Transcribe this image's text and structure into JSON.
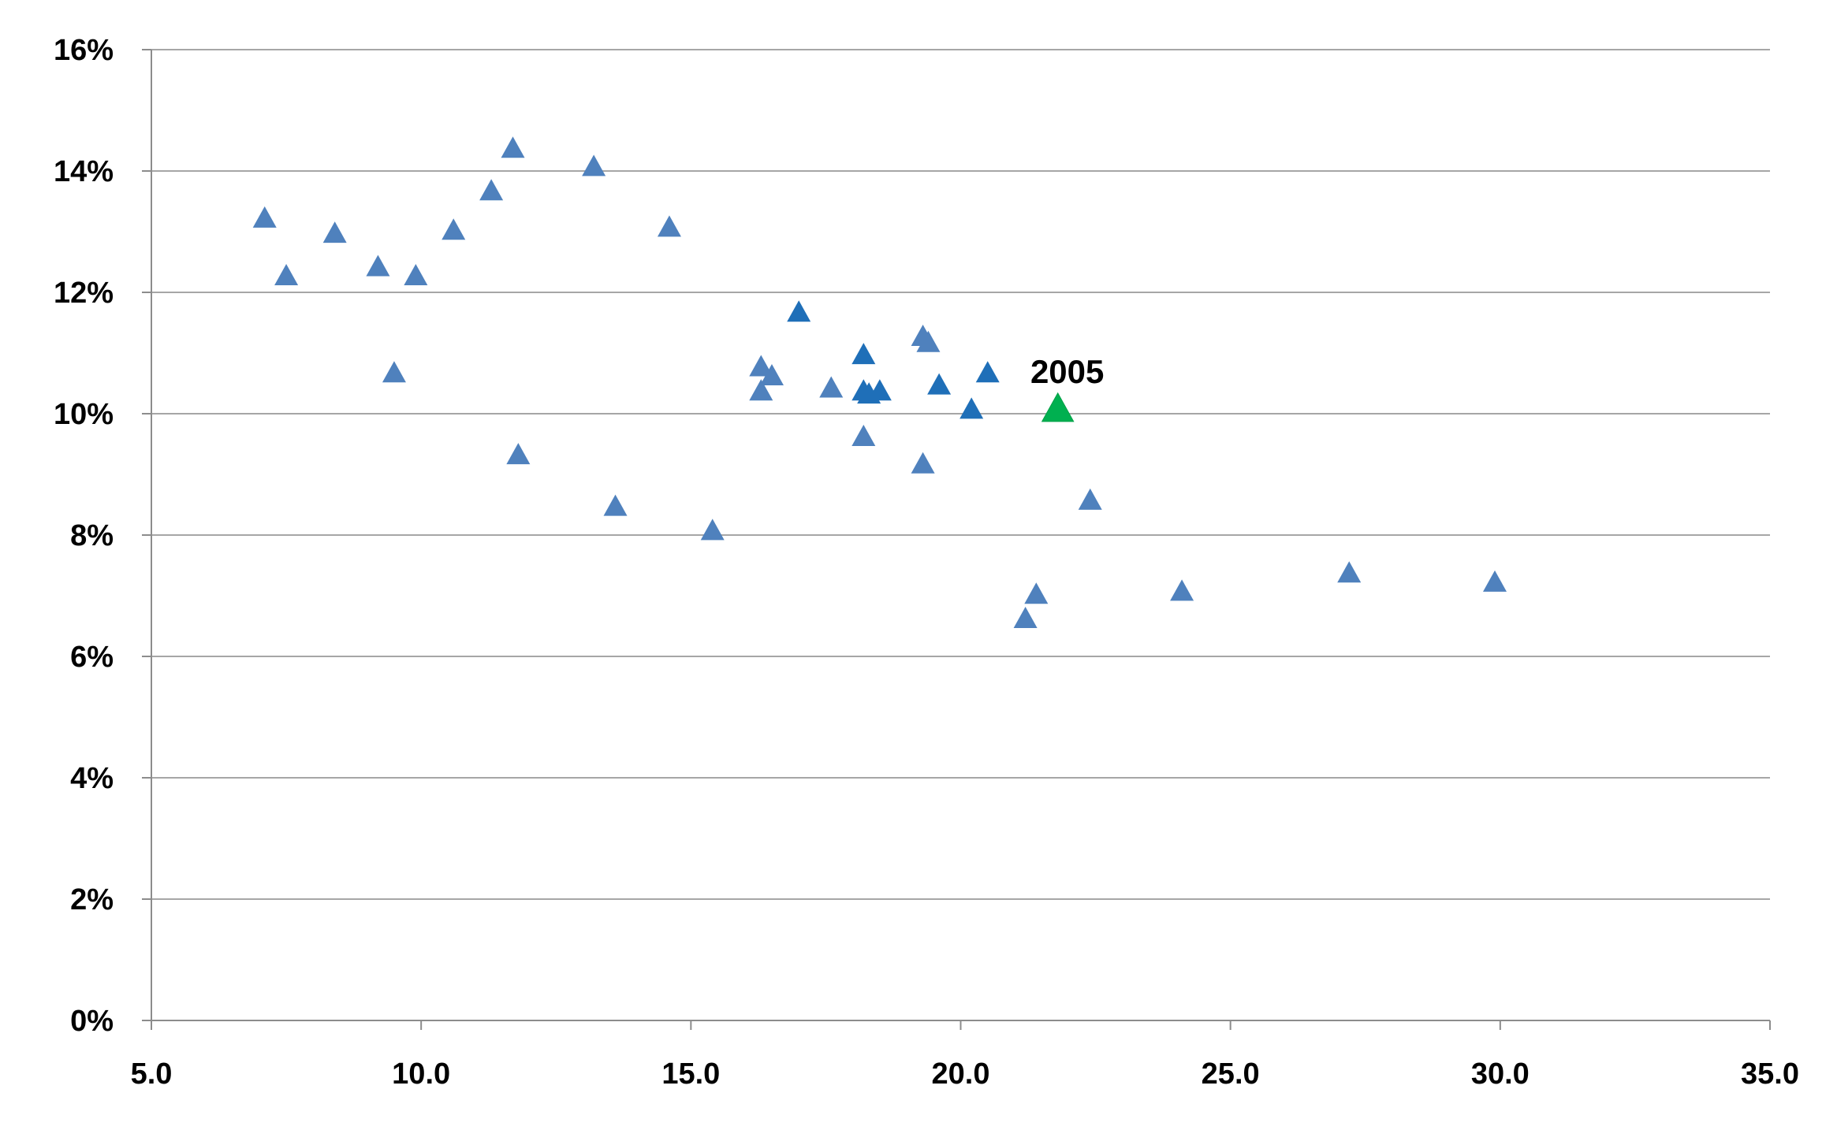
{
  "chart_data": {
    "type": "scatter",
    "title": "",
    "xlabel": "",
    "ylabel": "",
    "xlim": [
      5,
      35
    ],
    "ylim": [
      0,
      16
    ],
    "x_ticks": [
      5,
      10,
      15,
      20,
      25,
      30,
      35
    ],
    "x_tick_labels": [
      "5.0",
      "10.0",
      "15.0",
      "20.0",
      "25.0",
      "30.0",
      "35.0"
    ],
    "y_ticks": [
      0,
      2,
      4,
      6,
      8,
      10,
      12,
      14,
      16
    ],
    "y_tick_labels": [
      "0%",
      "2%",
      "4%",
      "6%",
      "8%",
      "10%",
      "12%",
      "14%",
      "16%"
    ],
    "grid": "horizontal",
    "marker": "triangle",
    "colors": {
      "light": "#4f81bd",
      "dark": "#1f6fb8",
      "highlight": "#00b050"
    },
    "points": [
      {
        "x": 7.1,
        "y": 13.2,
        "group": "light"
      },
      {
        "x": 7.5,
        "y": 12.25,
        "group": "light"
      },
      {
        "x": 8.4,
        "y": 12.95,
        "group": "light"
      },
      {
        "x": 9.2,
        "y": 12.4,
        "group": "light"
      },
      {
        "x": 9.5,
        "y": 10.65,
        "group": "light"
      },
      {
        "x": 9.9,
        "y": 12.25,
        "group": "light"
      },
      {
        "x": 10.6,
        "y": 13.0,
        "group": "light"
      },
      {
        "x": 11.3,
        "y": 13.65,
        "group": "light"
      },
      {
        "x": 11.7,
        "y": 14.35,
        "group": "light"
      },
      {
        "x": 11.8,
        "y": 9.3,
        "group": "light"
      },
      {
        "x": 13.2,
        "y": 14.05,
        "group": "light"
      },
      {
        "x": 13.6,
        "y": 8.45,
        "group": "light"
      },
      {
        "x": 14.6,
        "y": 13.05,
        "group": "light"
      },
      {
        "x": 15.4,
        "y": 8.05,
        "group": "light"
      },
      {
        "x": 16.3,
        "y": 10.75,
        "group": "light"
      },
      {
        "x": 16.3,
        "y": 10.35,
        "group": "light"
      },
      {
        "x": 16.5,
        "y": 10.6,
        "group": "light"
      },
      {
        "x": 17.0,
        "y": 11.65,
        "group": "dark"
      },
      {
        "x": 17.6,
        "y": 10.4,
        "group": "light"
      },
      {
        "x": 18.2,
        "y": 10.95,
        "group": "dark"
      },
      {
        "x": 18.2,
        "y": 10.35,
        "group": "dark"
      },
      {
        "x": 18.3,
        "y": 10.3,
        "group": "dark"
      },
      {
        "x": 18.5,
        "y": 10.35,
        "group": "dark"
      },
      {
        "x": 18.2,
        "y": 9.6,
        "group": "light"
      },
      {
        "x": 19.3,
        "y": 11.25,
        "group": "light"
      },
      {
        "x": 19.4,
        "y": 11.15,
        "group": "light"
      },
      {
        "x": 19.3,
        "y": 9.15,
        "group": "light"
      },
      {
        "x": 19.6,
        "y": 10.45,
        "group": "dark"
      },
      {
        "x": 20.2,
        "y": 10.05,
        "group": "dark"
      },
      {
        "x": 20.5,
        "y": 10.65,
        "group": "dark"
      },
      {
        "x": 21.8,
        "y": 10.05,
        "group": "highlight",
        "label": "2005"
      },
      {
        "x": 22.4,
        "y": 8.55,
        "group": "light"
      },
      {
        "x": 21.2,
        "y": 6.6,
        "group": "light"
      },
      {
        "x": 21.4,
        "y": 7.0,
        "group": "light"
      },
      {
        "x": 24.1,
        "y": 7.05,
        "group": "light"
      },
      {
        "x": 27.2,
        "y": 7.35,
        "group": "light"
      },
      {
        "x": 29.9,
        "y": 7.2,
        "group": "light"
      }
    ]
  }
}
